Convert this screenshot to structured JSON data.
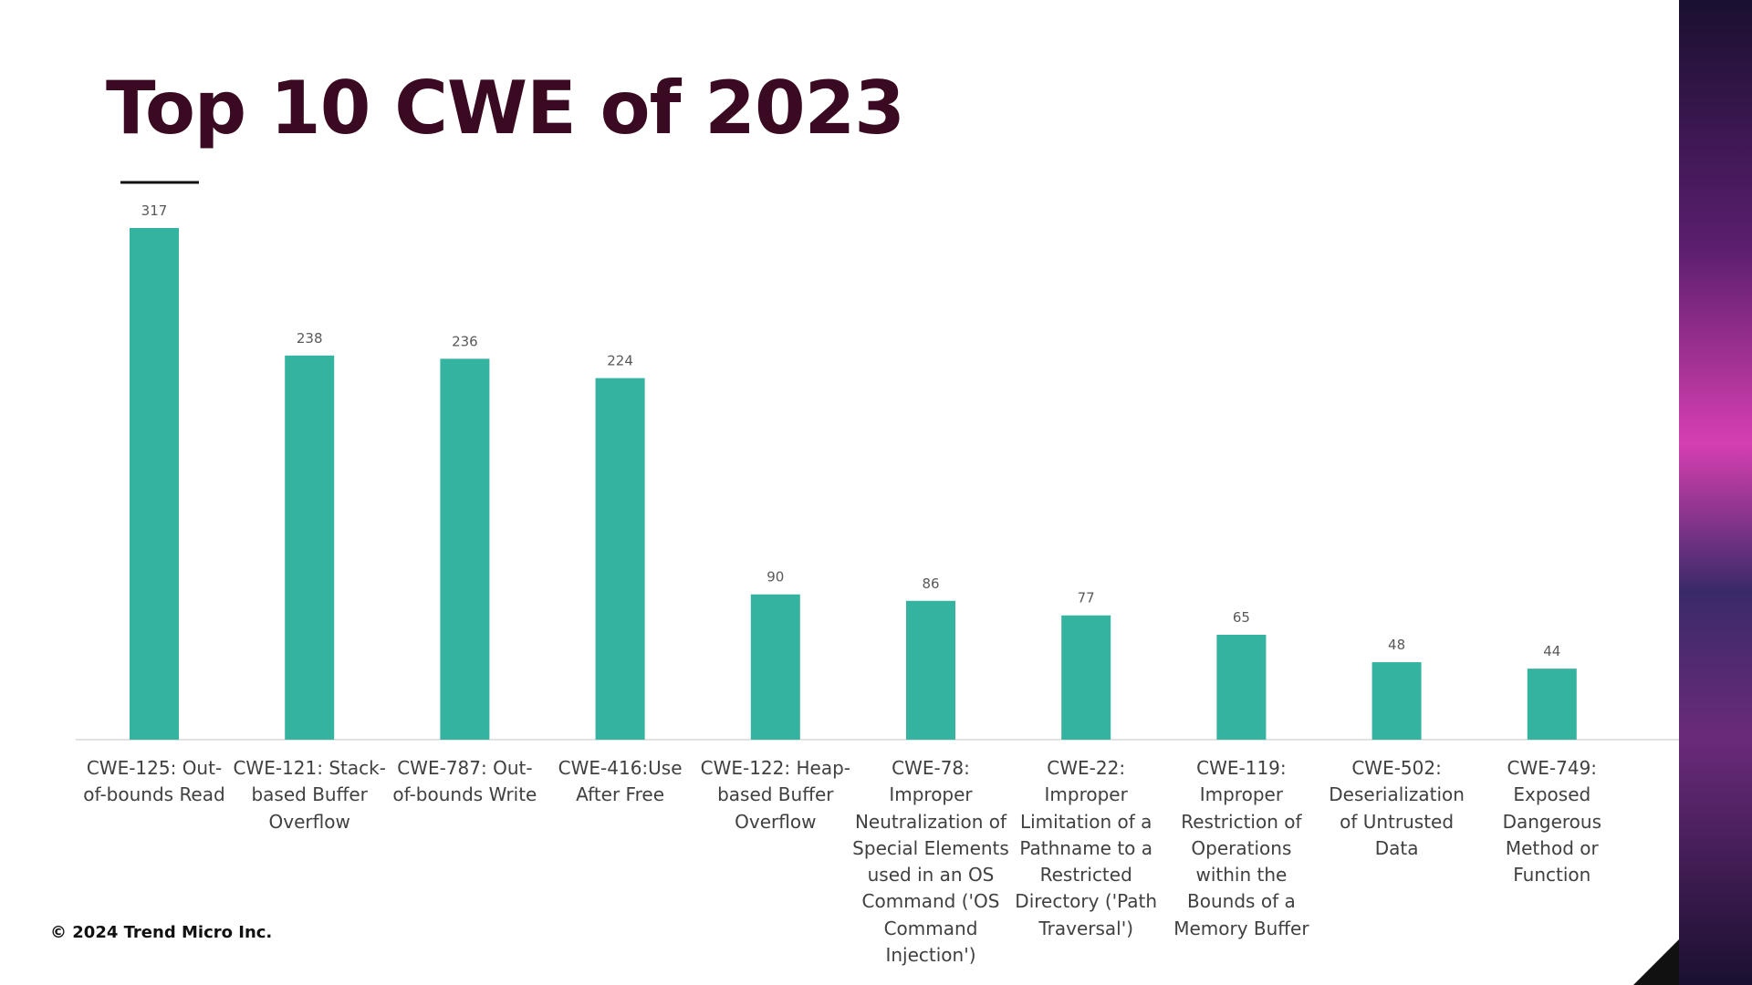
{
  "title": "Top 10 CWE of 2023",
  "footer": "© 2024 Trend Micro Inc.",
  "chart_data": {
    "type": "bar",
    "categories": [
      "CWE-125: Out-of-bounds Read",
      "CWE-121: Stack-based Buffer Overflow",
      "CWE-787: Out-of-bounds Write",
      "CWE-416:Use After Free",
      "CWE-122: Heap-based Buffer Overflow",
      "CWE-78: Improper Neutralization of Special Elements used in an OS Command ('OS Command Injection')",
      "CWE-22: Improper Limitation of a Pathname to a Restricted Directory ('Path Traversal')",
      "CWE-119: Improper Restriction of Operations within the Bounds of a Memory Buffer",
      "CWE-502: Deserialization of Untrusted Data",
      "CWE-749: Exposed Dangerous Method or Function"
    ],
    "values": [
      317,
      238,
      236,
      224,
      90,
      86,
      77,
      65,
      48,
      44
    ],
    "color": "#35b3a1"
  }
}
